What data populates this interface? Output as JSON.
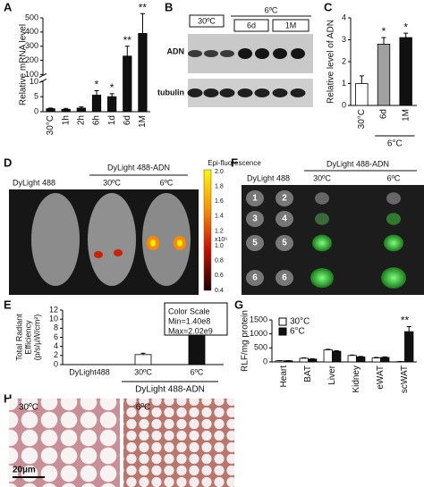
{
  "chart_data": [
    {
      "panel": "A",
      "type": "bar",
      "ylabel": "Relative mRNA level",
      "categories": [
        "30°C",
        "1h",
        "2h",
        "6h",
        "1d",
        "6d",
        "1M"
      ],
      "values": [
        1,
        0.8,
        1.2,
        5.5,
        5,
        230,
        390
      ],
      "errors": [
        0.2,
        0.3,
        0.4,
        1.5,
        1,
        70,
        140
      ],
      "annotations": [
        null,
        null,
        null,
        "*",
        "*",
        "**",
        "**"
      ],
      "color": "#111111",
      "ylim": [
        0,
        500
      ],
      "axis_break": [
        10,
        100
      ],
      "yticks": [
        0,
        5,
        10,
        100,
        200,
        300,
        400,
        500
      ]
    },
    {
      "panel": "C",
      "type": "bar",
      "ylabel": "Relative level of ADN",
      "categories": [
        "30°C",
        "6d",
        "1M"
      ],
      "values": [
        1,
        2.8,
        3.1
      ],
      "errors": [
        0.35,
        0.3,
        0.2
      ],
      "annotations": [
        null,
        "*",
        "*"
      ],
      "colors": [
        "#ffffff",
        "#a0a0a0",
        "#111111"
      ],
      "group_label": "6°C",
      "ylim": [
        0,
        4
      ],
      "yticks": [
        0,
        1,
        2,
        3,
        4
      ]
    },
    {
      "panel": "E",
      "type": "bar",
      "ylabel": [
        "Total Radiant",
        "Efficiency",
        "(p/s/µW/cm²)"
      ],
      "categories": [
        "DyLight488",
        "30ºC",
        "6ºC"
      ],
      "values": [
        0,
        2.2,
        10
      ],
      "errors": [
        0,
        0.3,
        0.4
      ],
      "annotations": [
        null,
        null,
        "*"
      ],
      "colors": [
        "#ffffff",
        "#ffffff",
        "#111111"
      ],
      "group_label": "DyLight 488-ADN",
      "note": [
        "Color Scale",
        "Min=1.40e8",
        "Max=2.02e9"
      ],
      "ylim": [
        0,
        12
      ],
      "yticks": [
        0,
        2,
        4,
        6,
        8,
        10,
        12
      ]
    },
    {
      "panel": "G",
      "type": "bar",
      "ylabel": "RLF/mg protein",
      "categories": [
        "Heart",
        "BAT",
        "Liver",
        "Kidney",
        "eWAT",
        "scWAT"
      ],
      "series": [
        {
          "name": "30°C",
          "color": "#ffffff",
          "values": [
            40,
            130,
            430,
            230,
            140,
            10
          ],
          "errors": [
            5,
            15,
            20,
            15,
            20,
            3
          ]
        },
        {
          "name": "6°C",
          "color": "#111111",
          "values": [
            40,
            100,
            380,
            180,
            160,
            1080
          ],
          "errors": [
            5,
            10,
            20,
            15,
            20,
            180
          ]
        }
      ],
      "annotations": [
        null,
        null,
        null,
        null,
        null,
        "**"
      ],
      "legend": "upper left",
      "ylim": [
        0,
        1500
      ],
      "yticks": [
        0,
        500,
        1000,
        1500
      ]
    }
  ],
  "images": {
    "B": {
      "panel": "B",
      "group_labels": [
        "30ºC",
        "6ºC"
      ],
      "sub_labels": [
        "6d",
        "1M"
      ],
      "rows": [
        "ADN",
        "tubulin"
      ]
    },
    "D": {
      "panel": "D",
      "control": "DyLight 488",
      "treated": "DyLight 488-ADN",
      "conditions": [
        "30ºC",
        "6ºC"
      ],
      "colorbar_title": "Epi-fluorescence",
      "colorbar_ticks": [
        "2.0",
        "1.8",
        "1.6",
        "1.4",
        "1.2",
        "1.0",
        "0.8",
        "0.6",
        "0.4"
      ],
      "colorbar_unit": "x10⁶"
    },
    "F": {
      "panel": "F",
      "control": "DyLight 488",
      "treated": "DyLight 488-ADN",
      "conditions": [
        "30ºC",
        "6ºC"
      ],
      "organ_numbers": [
        "1",
        "2",
        "3",
        "4",
        "5",
        "5",
        "6",
        "6"
      ]
    },
    "H": {
      "panel": "H",
      "conditions": [
        "30ºC",
        "6ºC"
      ],
      "scale_bar": "20µm"
    }
  }
}
